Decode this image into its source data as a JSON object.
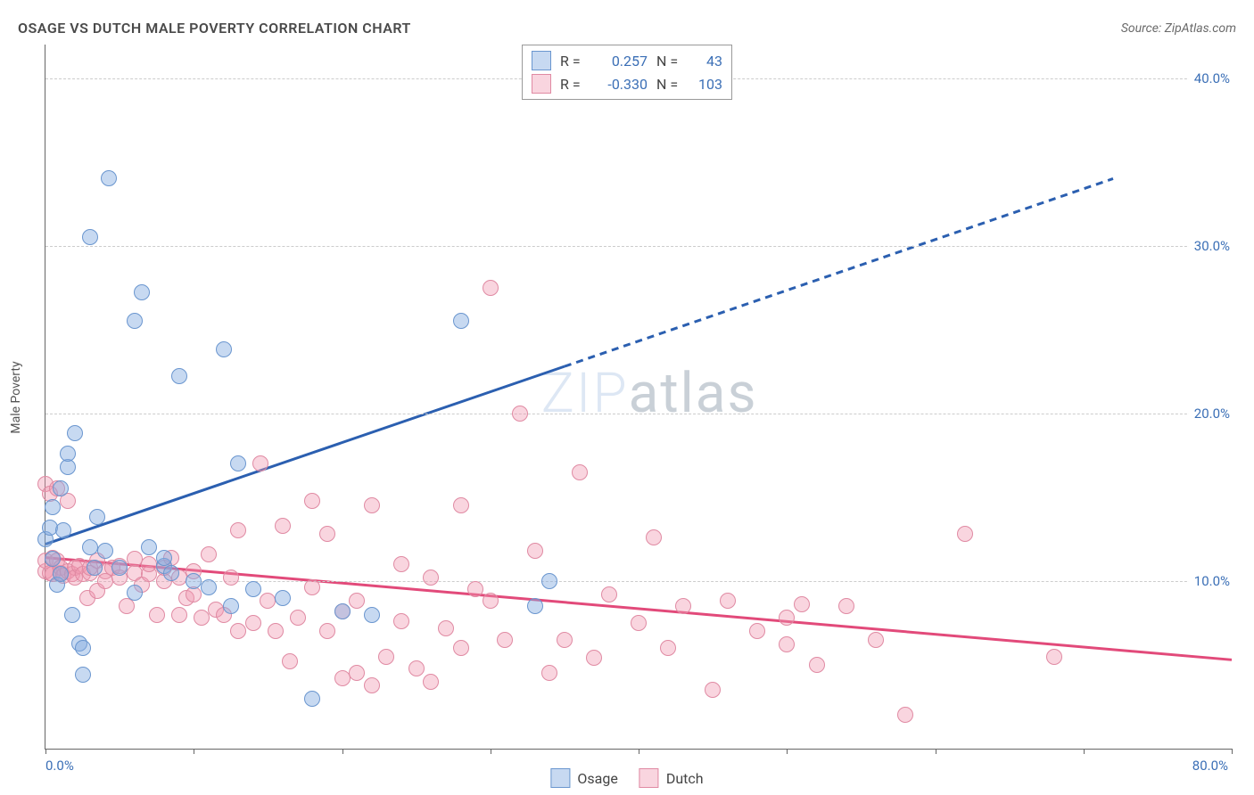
{
  "header": {
    "title": "OSAGE VS DUTCH MALE POVERTY CORRELATION CHART",
    "source": "Source: ZipAtlas.com"
  },
  "watermark": {
    "part1": "ZIP",
    "part2": "atlas"
  },
  "chart": {
    "type": "scatter",
    "ylabel": "Male Poverty",
    "background_color": "#ffffff",
    "grid_color": "#cccccc",
    "axis_color": "#666666",
    "xlim": [
      0,
      80
    ],
    "ylim": [
      0,
      42
    ],
    "xticks": [
      0,
      10,
      20,
      30,
      40,
      50,
      60,
      70,
      80
    ],
    "xtick_labels": {
      "0": "0.0%",
      "80": "80.0%"
    },
    "yticks": [
      10,
      20,
      30,
      40
    ],
    "ytick_labels": {
      "10": "10.0%",
      "20": "20.0%",
      "30": "30.0%",
      "40": "40.0%"
    },
    "tick_color": "#3b6fb6",
    "tick_fontsize": 15,
    "label_fontsize": 14,
    "marker_radius": 8,
    "series": [
      {
        "name": "Osage",
        "fill": "rgba(130,170,225,0.45)",
        "stroke": "#6a96cf",
        "R": "0.257",
        "N": "43",
        "trend": {
          "color": "#2b5fb0",
          "width": 3,
          "solid": {
            "x1": 0,
            "y1": 12.2,
            "x2": 35,
            "y2": 22.8
          },
          "dashed": {
            "x1": 35,
            "y1": 22.8,
            "x2": 72,
            "y2": 34.0
          }
        },
        "points": [
          [
            0,
            12.5
          ],
          [
            0.3,
            13.2
          ],
          [
            0.5,
            11.3
          ],
          [
            0.5,
            14.4
          ],
          [
            0.8,
            9.8
          ],
          [
            1,
            10.4
          ],
          [
            1,
            15.5
          ],
          [
            1.2,
            13.0
          ],
          [
            1.5,
            16.8
          ],
          [
            1.5,
            17.6
          ],
          [
            1.8,
            8.0
          ],
          [
            2,
            18.8
          ],
          [
            2.3,
            6.3
          ],
          [
            2.5,
            6.0
          ],
          [
            2.5,
            4.4
          ],
          [
            3,
            30.5
          ],
          [
            3,
            12.0
          ],
          [
            3.3,
            10.8
          ],
          [
            3.5,
            13.8
          ],
          [
            4,
            11.8
          ],
          [
            4.3,
            34.0
          ],
          [
            5,
            10.8
          ],
          [
            6,
            9.3
          ],
          [
            6,
            25.5
          ],
          [
            6.5,
            27.2
          ],
          [
            7,
            12.0
          ],
          [
            8,
            10.9
          ],
          [
            8,
            11.4
          ],
          [
            8.5,
            10.5
          ],
          [
            9,
            22.2
          ],
          [
            10,
            10.0
          ],
          [
            11,
            9.6
          ],
          [
            12,
            23.8
          ],
          [
            12.5,
            8.5
          ],
          [
            13,
            17.0
          ],
          [
            14,
            9.5
          ],
          [
            16,
            9.0
          ],
          [
            18,
            3.0
          ],
          [
            20,
            8.2
          ],
          [
            22,
            8.0
          ],
          [
            28,
            25.5
          ],
          [
            33,
            8.5
          ],
          [
            34,
            10.0
          ]
        ]
      },
      {
        "name": "Dutch",
        "fill": "rgba(240,150,175,0.40)",
        "stroke": "#e08aa3",
        "R": "-0.330",
        "N": "103",
        "trend": {
          "color": "#e24a7a",
          "width": 3,
          "solid": {
            "x1": 0,
            "y1": 11.4,
            "x2": 80,
            "y2": 5.3
          },
          "dashed": null
        },
        "points": [
          [
            0,
            10.6
          ],
          [
            0,
            11.2
          ],
          [
            0,
            15.8
          ],
          [
            0.3,
            10.5
          ],
          [
            0.3,
            15.2
          ],
          [
            0.5,
            10.4
          ],
          [
            0.5,
            11.4
          ],
          [
            0.8,
            11.2
          ],
          [
            0.8,
            15.5
          ],
          [
            1,
            10.5
          ],
          [
            1,
            10.8
          ],
          [
            1.2,
            10.3
          ],
          [
            1.5,
            10.6
          ],
          [
            1.5,
            14.8
          ],
          [
            1.8,
            10.4
          ],
          [
            2,
            10.8
          ],
          [
            2,
            10.2
          ],
          [
            2.3,
            10.9
          ],
          [
            2.5,
            10.4
          ],
          [
            2.8,
            9.0
          ],
          [
            3,
            10.5
          ],
          [
            3,
            10.8
          ],
          [
            3.5,
            9.4
          ],
          [
            3.5,
            11.2
          ],
          [
            4,
            10.6
          ],
          [
            4,
            10.0
          ],
          [
            4.5,
            10.8
          ],
          [
            5,
            10.2
          ],
          [
            5,
            10.9
          ],
          [
            5.5,
            8.5
          ],
          [
            6,
            10.5
          ],
          [
            6,
            11.3
          ],
          [
            6.5,
            9.8
          ],
          [
            7,
            10.4
          ],
          [
            7,
            11.0
          ],
          [
            7.5,
            8.0
          ],
          [
            8,
            10.0
          ],
          [
            8,
            10.8
          ],
          [
            8.5,
            11.4
          ],
          [
            9,
            8.0
          ],
          [
            9,
            10.2
          ],
          [
            9.5,
            9.0
          ],
          [
            10,
            9.2
          ],
          [
            10,
            10.6
          ],
          [
            10.5,
            7.8
          ],
          [
            11,
            11.6
          ],
          [
            11.5,
            8.3
          ],
          [
            12,
            8.0
          ],
          [
            12.5,
            10.2
          ],
          [
            13,
            7.0
          ],
          [
            13,
            13.0
          ],
          [
            14,
            7.5
          ],
          [
            14.5,
            17.0
          ],
          [
            15,
            8.8
          ],
          [
            15.5,
            7.0
          ],
          [
            16,
            13.3
          ],
          [
            16.5,
            5.2
          ],
          [
            17,
            7.8
          ],
          [
            18,
            9.6
          ],
          [
            18,
            14.8
          ],
          [
            19,
            12.8
          ],
          [
            19,
            7.0
          ],
          [
            20,
            4.2
          ],
          [
            20,
            8.2
          ],
          [
            21,
            8.8
          ],
          [
            21,
            4.5
          ],
          [
            22,
            3.8
          ],
          [
            22,
            14.5
          ],
          [
            23,
            5.5
          ],
          [
            24,
            11.0
          ],
          [
            24,
            7.6
          ],
          [
            25,
            4.8
          ],
          [
            26,
            4.0
          ],
          [
            26,
            10.2
          ],
          [
            27,
            7.2
          ],
          [
            28,
            6.0
          ],
          [
            28,
            14.5
          ],
          [
            29,
            9.5
          ],
          [
            30,
            27.5
          ],
          [
            30,
            8.8
          ],
          [
            31,
            6.5
          ],
          [
            32,
            20.0
          ],
          [
            33,
            11.8
          ],
          [
            34,
            4.5
          ],
          [
            35,
            6.5
          ],
          [
            36,
            16.5
          ],
          [
            37,
            5.4
          ],
          [
            38,
            9.2
          ],
          [
            40,
            7.5
          ],
          [
            41,
            12.6
          ],
          [
            42,
            6.0
          ],
          [
            43,
            8.5
          ],
          [
            45,
            3.5
          ],
          [
            46,
            8.8
          ],
          [
            48,
            7.0
          ],
          [
            50,
            7.8
          ],
          [
            50,
            6.2
          ],
          [
            51,
            8.6
          ],
          [
            52,
            5.0
          ],
          [
            54,
            8.5
          ],
          [
            56,
            6.5
          ],
          [
            58,
            2.0
          ],
          [
            62,
            12.8
          ],
          [
            68,
            5.5
          ]
        ]
      }
    ],
    "legend_bottom": [
      {
        "label": "Osage",
        "fill": "rgba(130,170,225,0.45)",
        "stroke": "#6a96cf"
      },
      {
        "label": "Dutch",
        "fill": "rgba(240,150,175,0.40)",
        "stroke": "#e08aa3"
      }
    ]
  }
}
